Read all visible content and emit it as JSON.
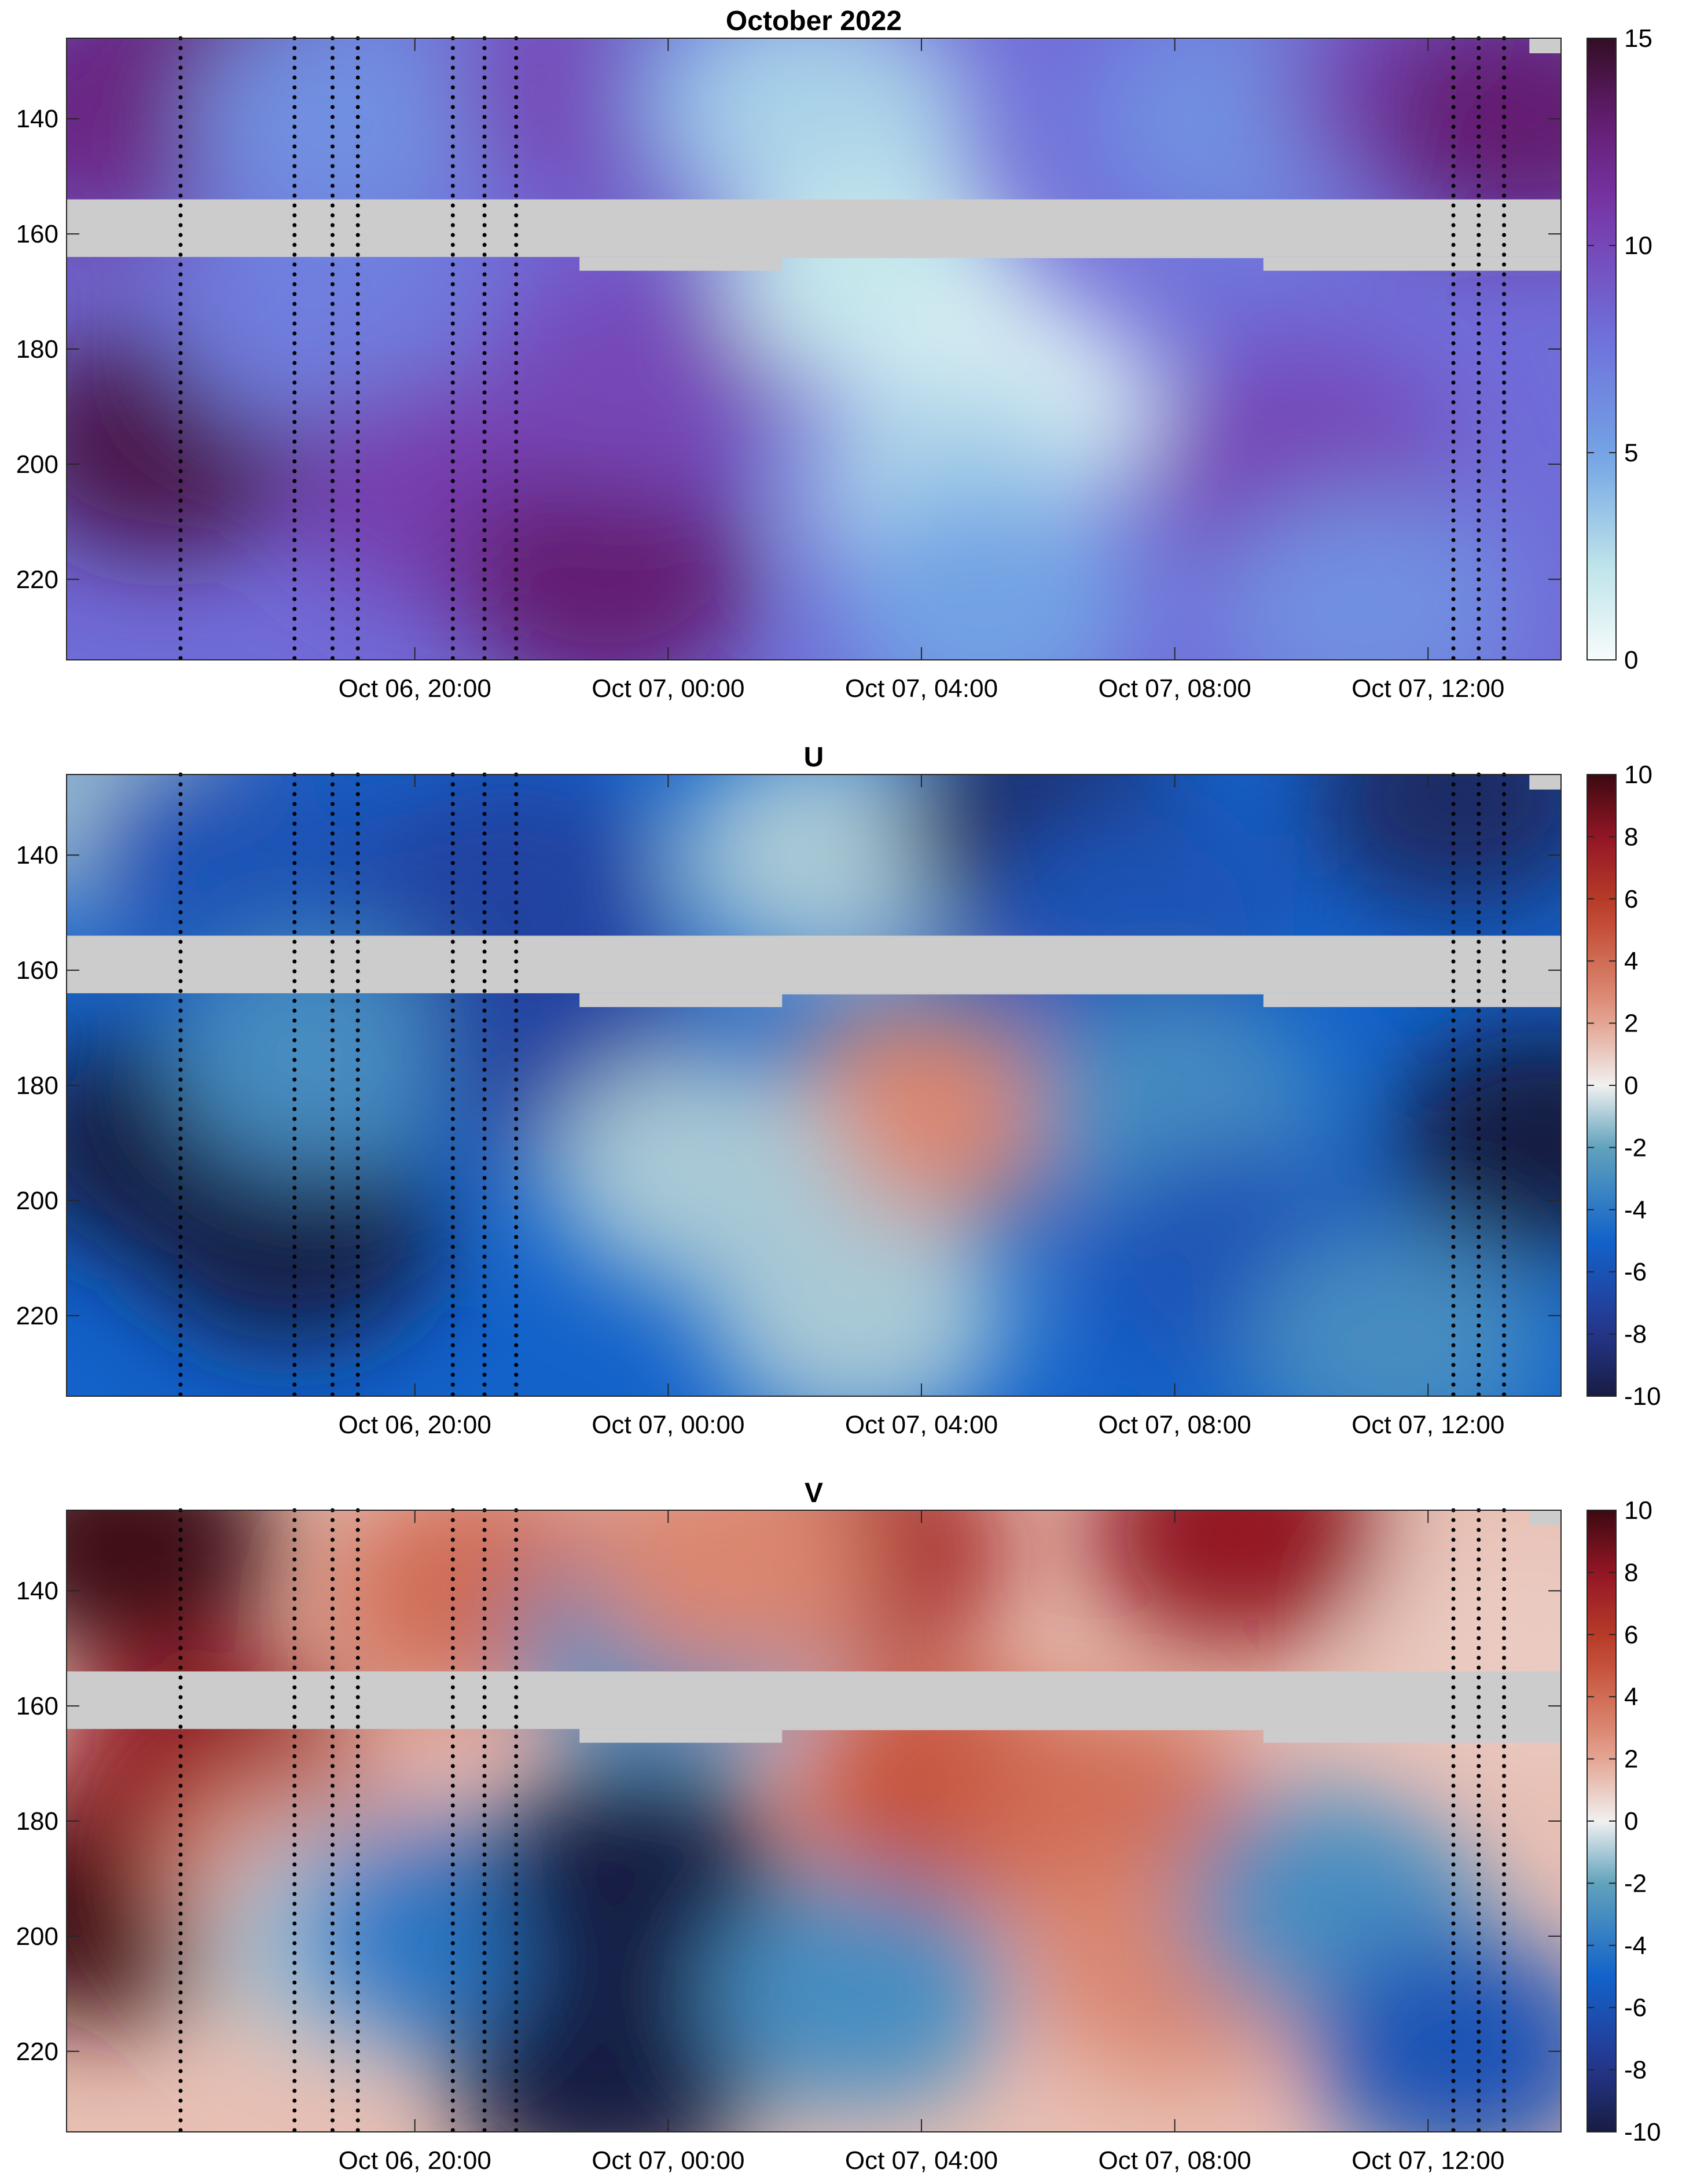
{
  "chart_data": [
    {
      "type": "heatmap",
      "title": "October 2022",
      "x_ticks": [
        "Oct 06, 20:00",
        "Oct 07, 00:00",
        "Oct 07, 04:00",
        "Oct 07, 08:00",
        "Oct 07, 12:00"
      ],
      "x_tick_hours": [
        20,
        24,
        28,
        32,
        36
      ],
      "xlim_hours": [
        14.5,
        38.1
      ],
      "y_ticks": [
        140,
        160,
        180,
        200,
        220
      ],
      "ylim": [
        126,
        234
      ],
      "y_reversed": true,
      "colorbar": {
        "min": 0,
        "max": 15,
        "ticks": [
          0,
          5,
          10,
          15
        ],
        "colormap": "dense (white-blue-purple)"
      },
      "missing_band": [
        154,
        164
      ],
      "marker_lines_hours": [
        16.3,
        18.1,
        18.7,
        19.1,
        20.6,
        21.1,
        21.6,
        36.4,
        36.8,
        37.2
      ],
      "field_regions": [
        {
          "x": 16,
          "y": 196,
          "value": 14
        },
        {
          "x": 15,
          "y": 140,
          "value": 12
        },
        {
          "x": 16.5,
          "y": 130,
          "value": 12.5
        },
        {
          "x": 18.8,
          "y": 140,
          "value": 6
        },
        {
          "x": 18.5,
          "y": 175,
          "value": 7
        },
        {
          "x": 20.5,
          "y": 205,
          "value": 10.5
        },
        {
          "x": 23,
          "y": 220,
          "value": 13
        },
        {
          "x": 23.5,
          "y": 185,
          "value": 10
        },
        {
          "x": 23,
          "y": 135,
          "value": 10
        },
        {
          "x": 25.5,
          "y": 135,
          "value": 6
        },
        {
          "x": 26.5,
          "y": 140,
          "value": 3
        },
        {
          "x": 27.3,
          "y": 168,
          "value": 2
        },
        {
          "x": 29.3,
          "y": 190,
          "value": 1
        },
        {
          "x": 28.5,
          "y": 205,
          "value": 3
        },
        {
          "x": 29,
          "y": 225,
          "value": 5
        },
        {
          "x": 33,
          "y": 140,
          "value": 6
        },
        {
          "x": 34,
          "y": 200,
          "value": 10
        },
        {
          "x": 35,
          "y": 225,
          "value": 6
        },
        {
          "x": 36,
          "y": 135,
          "value": 10
        },
        {
          "x": 37.5,
          "y": 140,
          "value": 13
        }
      ]
    },
    {
      "type": "heatmap",
      "title": "U",
      "x_ticks": [
        "Oct 06, 20:00",
        "Oct 07, 00:00",
        "Oct 07, 04:00",
        "Oct 07, 08:00",
        "Oct 07, 12:00"
      ],
      "x_tick_hours": [
        20,
        24,
        28,
        32,
        36
      ],
      "xlim_hours": [
        14.5,
        38.1
      ],
      "y_ticks": [
        140,
        160,
        180,
        200,
        220
      ],
      "ylim": [
        126,
        234
      ],
      "y_reversed": true,
      "colorbar": {
        "min": -10,
        "max": 10,
        "ticks": [
          -10,
          -8,
          -6,
          -4,
          -2,
          0,
          2,
          4,
          6,
          8,
          10
        ],
        "colormap": "balance (blue-white-red)"
      },
      "missing_band": [
        154,
        164
      ],
      "marker_lines_hours": [
        16.3,
        18.1,
        18.7,
        19.1,
        20.6,
        21.1,
        21.6,
        36.4,
        36.8,
        37.2
      ],
      "field_regions": [
        {
          "x": 15.5,
          "y": 132,
          "value": -1
        },
        {
          "x": 16,
          "y": 190,
          "value": -10
        },
        {
          "x": 18,
          "y": 205,
          "value": -10
        },
        {
          "x": 17,
          "y": 140,
          "value": -6
        },
        {
          "x": 18.5,
          "y": 175,
          "value": -3
        },
        {
          "x": 21.5,
          "y": 145,
          "value": -7
        },
        {
          "x": 22.5,
          "y": 175,
          "value": -7
        },
        {
          "x": 26.5,
          "y": 140,
          "value": -1
        },
        {
          "x": 28,
          "y": 185,
          "value": 3
        },
        {
          "x": 24.5,
          "y": 195,
          "value": -1
        },
        {
          "x": 27,
          "y": 220,
          "value": -1
        },
        {
          "x": 30,
          "y": 135,
          "value": -9
        },
        {
          "x": 31.5,
          "y": 150,
          "value": -6
        },
        {
          "x": 32,
          "y": 185,
          "value": -3
        },
        {
          "x": 33,
          "y": 210,
          "value": -6
        },
        {
          "x": 35.5,
          "y": 225,
          "value": -3
        },
        {
          "x": 36.5,
          "y": 130,
          "value": -9
        },
        {
          "x": 37.8,
          "y": 190,
          "value": -10
        }
      ]
    },
    {
      "type": "heatmap",
      "title": "V",
      "x_ticks": [
        "Oct 06, 20:00",
        "Oct 07, 00:00",
        "Oct 07, 04:00",
        "Oct 07, 08:00",
        "Oct 07, 12:00"
      ],
      "x_tick_hours": [
        20,
        24,
        28,
        32,
        36
      ],
      "xlim_hours": [
        14.5,
        38.1
      ],
      "y_ticks": [
        140,
        160,
        180,
        200,
        220
      ],
      "ylim": [
        126,
        234
      ],
      "y_reversed": true,
      "colorbar": {
        "min": -10,
        "max": 10,
        "ticks": [
          -10,
          -8,
          -6,
          -4,
          -2,
          0,
          2,
          4,
          6,
          8,
          10
        ],
        "colormap": "balance (blue-white-red)"
      },
      "missing_band": [
        154,
        164
      ],
      "marker_lines_hours": [
        16.3,
        18.1,
        18.7,
        19.1,
        20.6,
        21.1,
        21.6,
        36.4,
        36.8,
        37.2
      ],
      "field_regions": [
        {
          "x": 15.5,
          "y": 132,
          "value": 10
        },
        {
          "x": 15,
          "y": 195,
          "value": 10
        },
        {
          "x": 16.8,
          "y": 170,
          "value": 8
        },
        {
          "x": 18.3,
          "y": 190,
          "value": 3
        },
        {
          "x": 19.2,
          "y": 200,
          "value": -1
        },
        {
          "x": 20.5,
          "y": 200,
          "value": -4
        },
        {
          "x": 21,
          "y": 140,
          "value": 4
        },
        {
          "x": 23.5,
          "y": 190,
          "value": -10
        },
        {
          "x": 23,
          "y": 225,
          "value": -10
        },
        {
          "x": 24,
          "y": 150,
          "value": -3
        },
        {
          "x": 27,
          "y": 133,
          "value": 7
        },
        {
          "x": 25,
          "y": 135,
          "value": 3
        },
        {
          "x": 28.5,
          "y": 175,
          "value": 5
        },
        {
          "x": 31,
          "y": 180,
          "value": 4
        },
        {
          "x": 27,
          "y": 210,
          "value": -3
        },
        {
          "x": 33,
          "y": 130,
          "value": 8
        },
        {
          "x": 32,
          "y": 205,
          "value": 3
        },
        {
          "x": 34.5,
          "y": 195,
          "value": -3
        },
        {
          "x": 36.5,
          "y": 220,
          "value": -6
        },
        {
          "x": 37.5,
          "y": 150,
          "value": 1
        }
      ]
    }
  ]
}
